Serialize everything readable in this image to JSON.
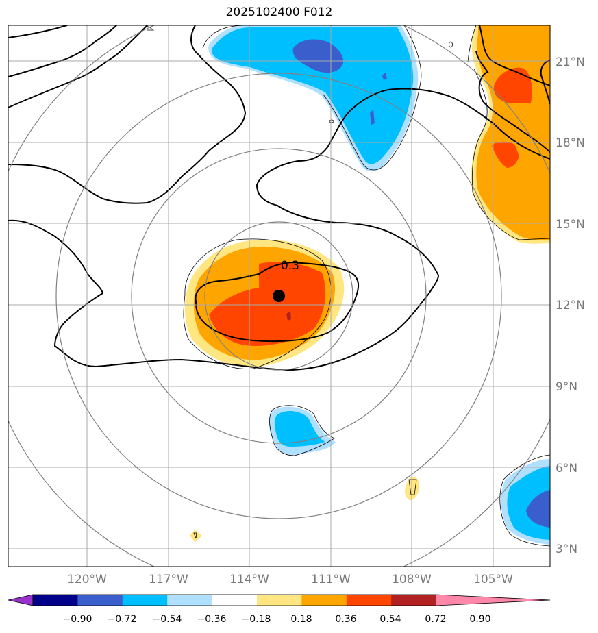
{
  "title": "2025102400 F012",
  "map": {
    "lat_labels": [
      "21°N",
      "18°N",
      "15°N",
      "12°N",
      "9°N",
      "6°N",
      "3°N"
    ],
    "lon_labels": [
      "120°W",
      "117°W",
      "114°W",
      "111°W",
      "108°W",
      "105°W"
    ],
    "contour_label": "0.3",
    "grid_color": "#aaaaaa",
    "range_ring_color": "#808080",
    "storm_marker": "black-dot"
  },
  "colorbar": {
    "labels": [
      "−0.90",
      "−0.72",
      "−0.54",
      "−0.36",
      "−0.18",
      "0.18",
      "0.36",
      "0.54",
      "0.72",
      "0.90"
    ],
    "colors": [
      "#9932cc",
      "#00008b",
      "#3a5fcd",
      "#00bfff",
      "#b0e0ff",
      "#ffffff",
      "#ffe680",
      "#ffa500",
      "#ff4500",
      "#b22222",
      "#ff88aa"
    ]
  }
}
